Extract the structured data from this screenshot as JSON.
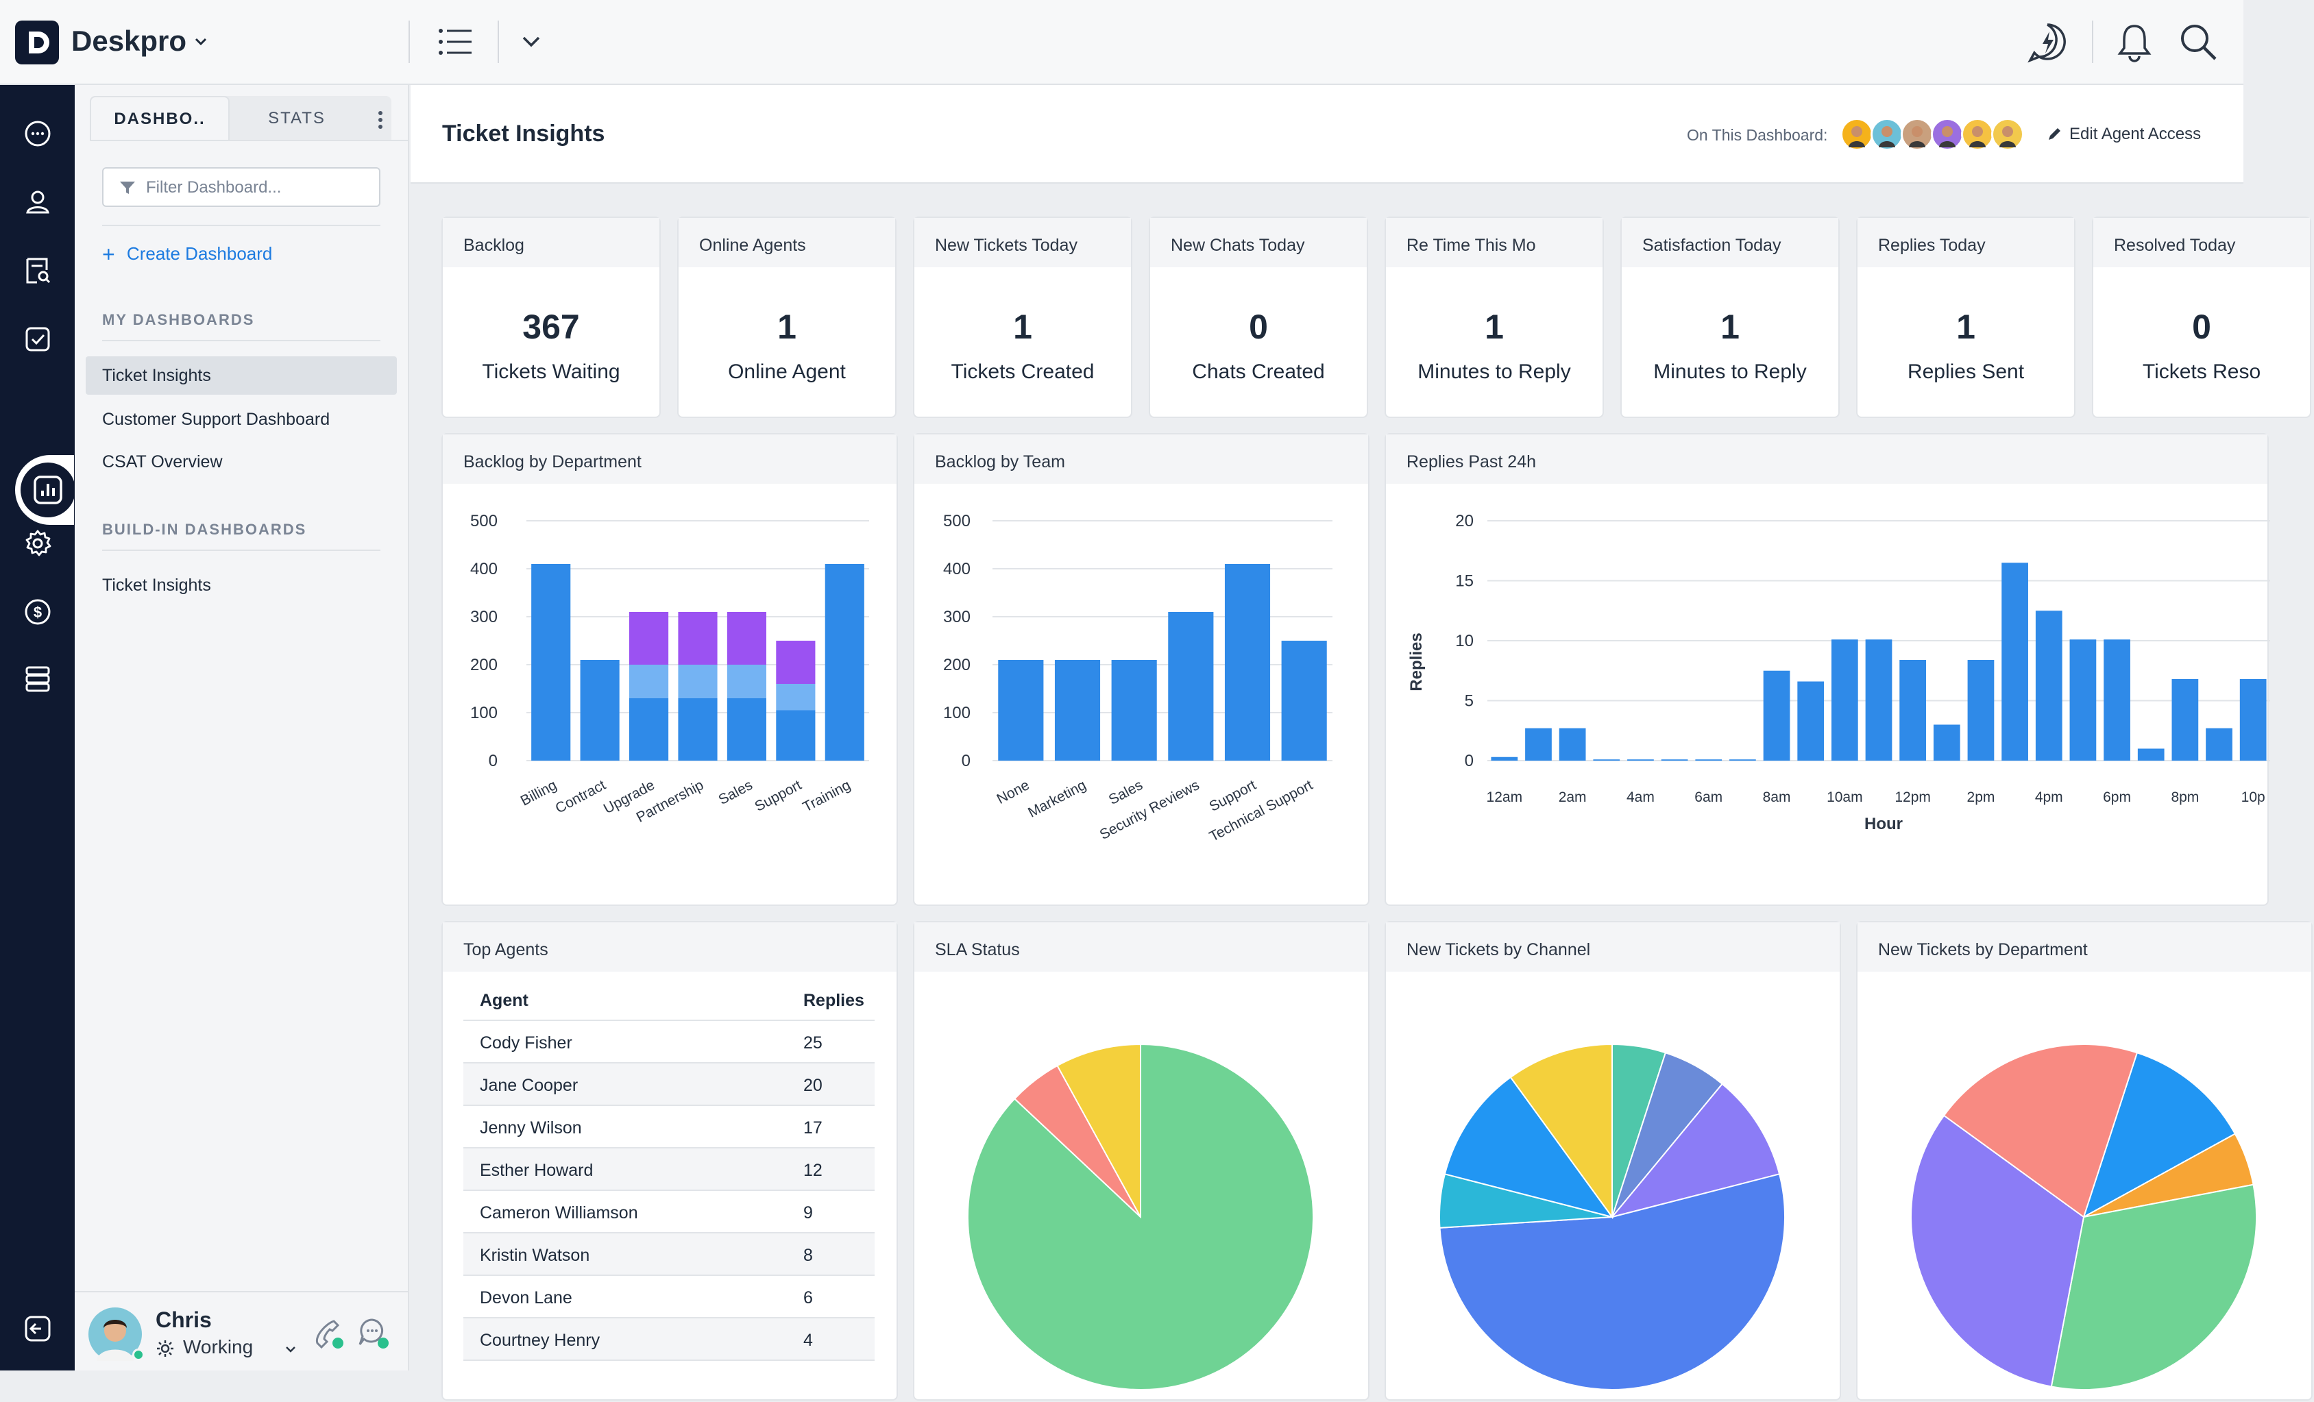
{
  "app": {
    "title": "Deskpro"
  },
  "sidebar": {
    "tabs": [
      {
        "label": "DASHBO.."
      },
      {
        "label": "STATS"
      }
    ],
    "filter_placeholder": "Filter Dashboard...",
    "create_label": "Create Dashboard",
    "my_dashboards_heading": "MY DASHBOARDS",
    "my_dashboards": [
      {
        "label": "Ticket Insights",
        "active": true
      },
      {
        "label": "Customer Support Dashboard"
      },
      {
        "label": "CSAT Overview"
      }
    ],
    "builtin_heading": "BUILD-IN DASHBOARDS",
    "builtin": [
      {
        "label": "Ticket Insights"
      }
    ],
    "user": {
      "name": "Chris",
      "status": "Working"
    }
  },
  "header": {
    "title": "Ticket Insights",
    "on_dashboard_label": "On This Dashboard:",
    "edit_access_label": "Edit Agent Access",
    "avatar_colors": [
      "#f5b21b",
      "#6cc0d8",
      "#c9a07e",
      "#9b6fe0",
      "#f5c242",
      "#f2c94c"
    ]
  },
  "stats": [
    {
      "title": "Backlog",
      "value": "367",
      "label": "Tickets Waiting"
    },
    {
      "title": "Online Agents",
      "value": "1",
      "label": "Online Agent"
    },
    {
      "title": "New Tickets Today",
      "value": "1",
      "label": "Tickets Created"
    },
    {
      "title": "New Chats Today",
      "value": "0",
      "label": "Chats Created"
    },
    {
      "title": "Re Time This Mo",
      "value": "1",
      "label": "Minutes to Reply"
    },
    {
      "title": "Satisfaction Today",
      "value": "1",
      "label": "Minutes to Reply"
    },
    {
      "title": "Replies Today",
      "value": "1",
      "label": "Replies Sent"
    },
    {
      "title": "Resolved Today",
      "value": "0",
      "label": "Tickets Reso"
    }
  ],
  "chart_titles": {
    "backlog_dept": "Backlog by Department",
    "backlog_team": "Backlog by Team",
    "replies": "Replies Past 24h",
    "top_agents": "Top Agents",
    "sla": "SLA Status",
    "channel": "New Tickets by Channel",
    "department": "New Tickets by Department"
  },
  "top_agents": {
    "headers": [
      "Agent",
      "Replies"
    ],
    "rows": [
      [
        "Cody Fisher",
        "25"
      ],
      [
        "Jane Cooper",
        "20"
      ],
      [
        "Jenny Wilson",
        "17"
      ],
      [
        "Esther Howard",
        "12"
      ],
      [
        "Cameron Williamson",
        "9"
      ],
      [
        "Kristin Watson",
        "8"
      ],
      [
        "Devon Lane",
        "6"
      ],
      [
        "Courtney Henry",
        "4"
      ]
    ]
  },
  "colors": {
    "bar": "#2f8ae8",
    "bar_light": "#74b3f3",
    "bar_purple": "#9b52f2",
    "accent": "#1d7be0"
  },
  "chart_data": [
    {
      "type": "bar",
      "title": "Backlog by Department",
      "categories": [
        "Billing",
        "Contract",
        "Upgrade",
        "Partnership",
        "Sales",
        "Support",
        "Training"
      ],
      "series": [
        {
          "values": [
            410,
            210,
            130,
            130,
            130,
            105,
            410
          ],
          "color": "#2f8ae8"
        },
        {
          "values": [
            0,
            0,
            70,
            70,
            70,
            55,
            0
          ],
          "color": "#74b3f3"
        },
        {
          "values": [
            0,
            0,
            110,
            110,
            110,
            90,
            0
          ],
          "color": "#9b52f2"
        }
      ],
      "stacked": true,
      "yticks": [
        0,
        100,
        200,
        300,
        400,
        500
      ],
      "ylim": [
        0,
        500
      ]
    },
    {
      "type": "bar",
      "title": "Backlog by Team",
      "categories": [
        "None",
        "Marketing",
        "Sales",
        "Security Reviews",
        "Support",
        "Technical Support"
      ],
      "values": [
        210,
        210,
        210,
        310,
        410,
        250
      ],
      "yticks": [
        0,
        100,
        200,
        300,
        400,
        500
      ],
      "ylim": [
        0,
        500
      ]
    },
    {
      "type": "bar",
      "title": "Replies Past 24h",
      "xlabel": "Hour",
      "ylabel": "Replies",
      "x_tick_labels": [
        "12am",
        "2am",
        "4am",
        "6am",
        "8am",
        "10am",
        "12pm",
        "2pm",
        "4pm",
        "6pm",
        "8pm",
        "10p"
      ],
      "values": [
        0.3,
        2.7,
        2.7,
        0.1,
        0.1,
        0.1,
        0.1,
        0.1,
        7.5,
        6.6,
        10.1,
        10.1,
        8.4,
        3.0,
        8.4,
        16.5,
        12.5,
        10.1,
        10.1,
        1.0,
        6.8,
        2.7,
        6.8
      ],
      "yticks": [
        0,
        5,
        10,
        15,
        20
      ],
      "ylim": [
        0,
        20
      ]
    },
    {
      "type": "pie",
      "title": "SLA Status",
      "slices": [
        {
          "value": 87,
          "color": "#6fd394"
        },
        {
          "value": 5,
          "color": "#f88a82"
        },
        {
          "value": 8,
          "color": "#f4d03c"
        }
      ]
    },
    {
      "type": "pie",
      "title": "New Tickets by Channel",
      "slices": [
        {
          "value": 5,
          "color": "#4fc7aa"
        },
        {
          "value": 6,
          "color": "#6a8bd9"
        },
        {
          "value": 10,
          "color": "#8b7cf6"
        },
        {
          "value": 53,
          "color": "#5080ef"
        },
        {
          "value": 5,
          "color": "#2bb7d8"
        },
        {
          "value": 11,
          "color": "#2196f3"
        },
        {
          "value": 10,
          "color": "#f4d03c"
        }
      ]
    },
    {
      "type": "pie",
      "title": "New Tickets by Department",
      "slices": [
        {
          "value": 12,
          "color": "#2196f3"
        },
        {
          "value": 5,
          "color": "#f7a535"
        },
        {
          "value": 31,
          "color": "#6fd394"
        },
        {
          "value": 32,
          "color": "#8b7cf6"
        },
        {
          "value": 20,
          "color": "#f88a82"
        }
      ]
    }
  ]
}
